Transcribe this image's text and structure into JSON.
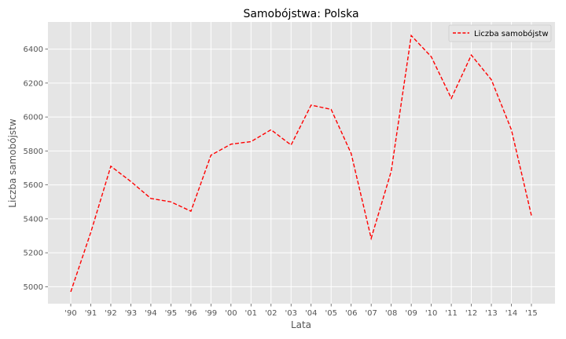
{
  "chart_data": {
    "type": "line",
    "title": "Samobójstwa: Polska",
    "xlabel": "Lata",
    "ylabel": "Liczba samobójstw",
    "categories": [
      "'90",
      "'91",
      "'92",
      "'93",
      "'94",
      "'95",
      "'96",
      "'99",
      "'00",
      "'01",
      "'02",
      "'03",
      "'04",
      "'05",
      "'06",
      "'07",
      "'08",
      "'09",
      "'10",
      "'11",
      "'12",
      "'13",
      "'14",
      "'15"
    ],
    "yticks": [
      5000,
      5200,
      5400,
      5600,
      5800,
      6000,
      6200,
      6400
    ],
    "ylim": [
      4900,
      6560
    ],
    "grid": true,
    "legend_position": "top-right",
    "series": [
      {
        "name": "Liczba samobójstw",
        "color": "#ff0000",
        "line_style": "dashed",
        "values": [
          4970,
          5320,
          5710,
          5620,
          5520,
          5500,
          5445,
          5775,
          5840,
          5855,
          5925,
          5835,
          6070,
          6045,
          5785,
          5285,
          5680,
          6480,
          6355,
          6110,
          6365,
          6220,
          5925,
          5420
        ]
      }
    ]
  }
}
